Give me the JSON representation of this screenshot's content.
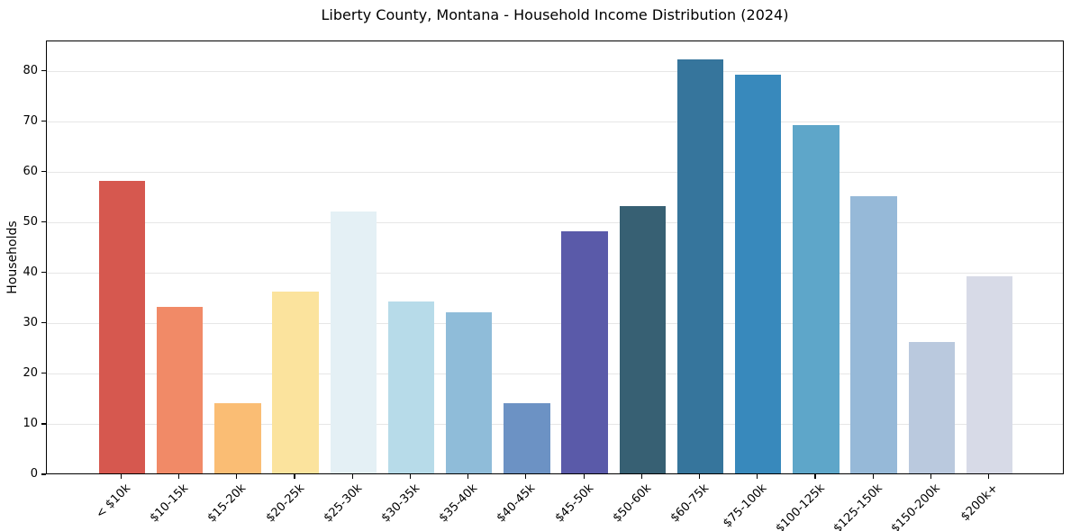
{
  "chart_data": {
    "type": "bar",
    "title": "Liberty County, Montana - Household Income Distribution (2024)",
    "xlabel": "",
    "ylabel": "Households",
    "categories": [
      "< $10k",
      "$10-15k",
      "$15-20k",
      "$20-25k",
      "$25-30k",
      "$30-35k",
      "$35-40k",
      "$40-45k",
      "$45-50k",
      "$50-60k",
      "$60-75k",
      "$75-100k",
      "$100-125k",
      "$125-150k",
      "$150-200k",
      "$200k+"
    ],
    "values": [
      58,
      33,
      14,
      36,
      52,
      34,
      32,
      14,
      48,
      53,
      82,
      79,
      69,
      55,
      26,
      39
    ],
    "bar_colors": [
      "#d6584f",
      "#f18a67",
      "#fabd74",
      "#fbe39d",
      "#e4f0f5",
      "#b7dbe9",
      "#8fbcd9",
      "#6c92c4",
      "#5a5aa9",
      "#376073",
      "#36759c",
      "#3889bc",
      "#5ea6c9",
      "#96b9d8",
      "#bac9de",
      "#d7dae7"
    ],
    "yticks": [
      0,
      10,
      20,
      30,
      40,
      50,
      60,
      70,
      80
    ],
    "ylim": [
      0,
      86
    ],
    "xlim": [
      -1.3,
      16.3
    ],
    "bar_width_units": 0.8,
    "legend": "none",
    "grid": "horizontal-only",
    "grid_color": "#e6e6e6",
    "spine_color": "#000000",
    "background_color": "#ffffff",
    "x_tick_label_rotation_deg": 45
  }
}
